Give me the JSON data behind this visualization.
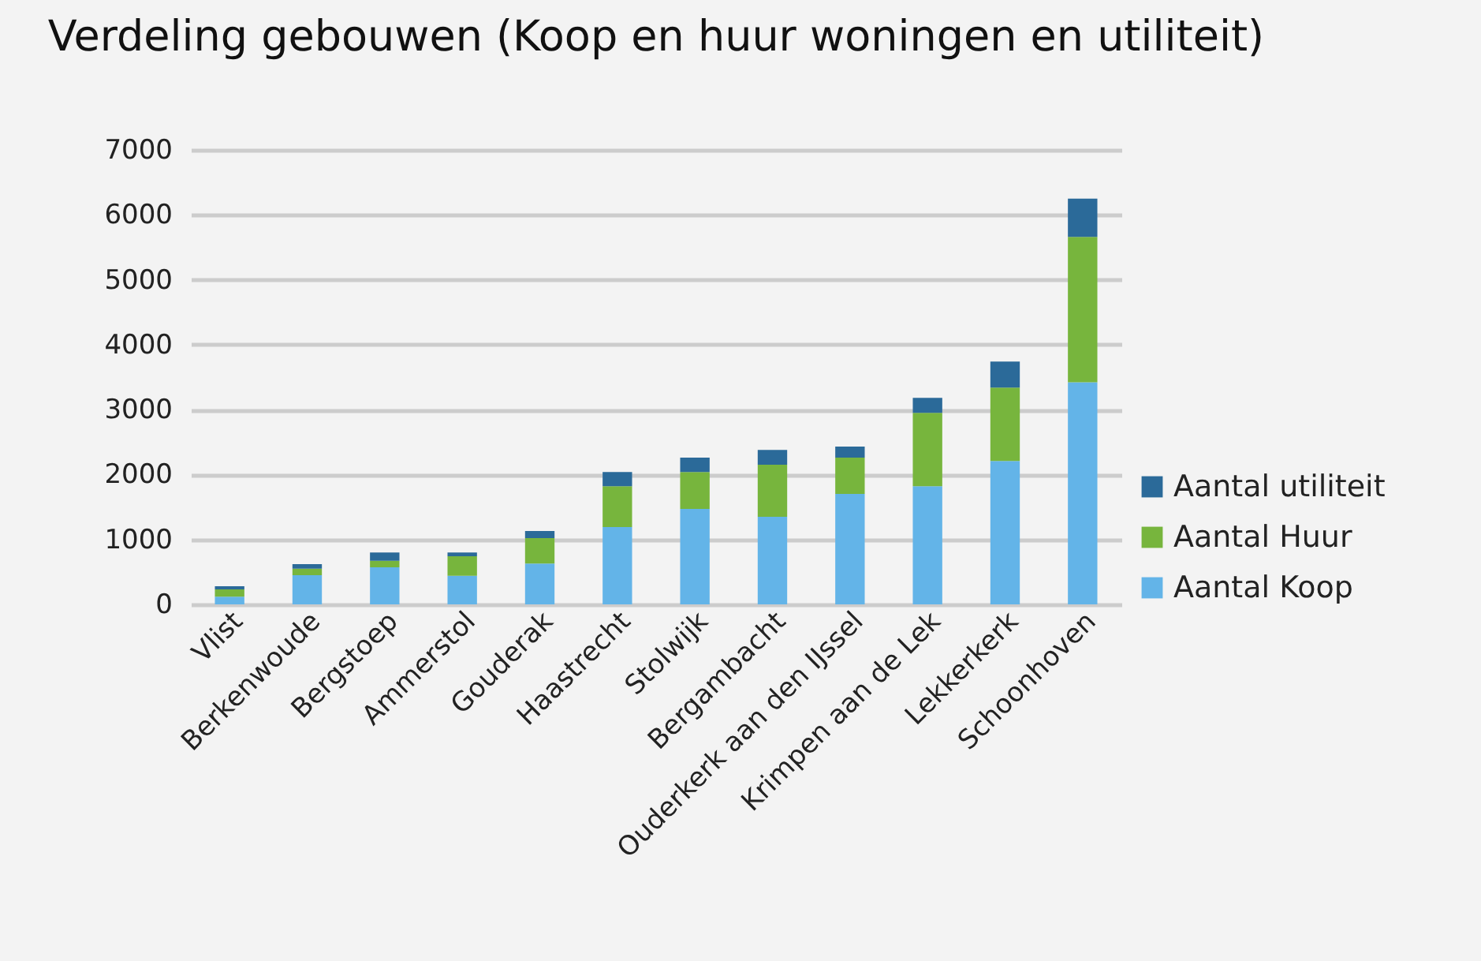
{
  "chart_data": {
    "type": "bar",
    "title": "Verdeling gebouwen (Koop en huur woningen en utiliteit)",
    "categories": [
      "Vlist",
      "Berkenwoude",
      "Bergstoep",
      "Ammerstol",
      "Gouderak",
      "Haastrecht",
      "Stolwijk",
      "Bergambacht",
      "Ouderkerk aan den IJssel",
      "Krimpen aan de Lek",
      "Lekkerkerk",
      "Schoonhoven"
    ],
    "stacked": true,
    "series": [
      {
        "name": "Aantal Koop",
        "color": "#63b4e8",
        "values": [
          120,
          450,
          570,
          440,
          630,
          1190,
          1470,
          1350,
          1700,
          1820,
          2210,
          3420
        ]
      },
      {
        "name": "Aantal Huur",
        "color": "#77b53d",
        "values": [
          110,
          100,
          100,
          300,
          390,
          630,
          570,
          800,
          560,
          1130,
          1130,
          2240
        ]
      },
      {
        "name": "Aantal utiliteit",
        "color": "#2b6a99",
        "values": [
          50,
          70,
          130,
          60,
          110,
          220,
          220,
          230,
          170,
          230,
          400,
          590
        ]
      }
    ],
    "ylim": [
      0,
      7000
    ],
    "yticks": [
      0,
      1000,
      2000,
      3000,
      4000,
      5000,
      6000,
      7000
    ],
    "grid": "y",
    "legend": "right"
  }
}
